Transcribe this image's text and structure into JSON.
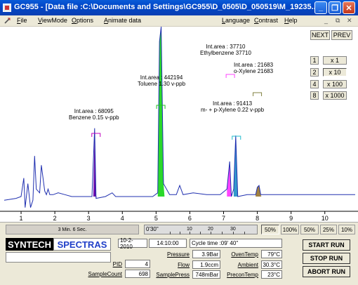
{
  "window": {
    "title": "GC955 - [Data file :C:\\Documents and Settings\\GC955\\D_0505\\D_050519\\M_19235...",
    "buttons": [
      "_",
      "❐",
      "✕"
    ]
  },
  "menu": {
    "left": [
      "File",
      "ViewMode",
      "Options",
      "Animate data"
    ],
    "right": [
      "Language",
      "Contrast",
      "Help"
    ],
    "mdi_controls": [
      "_",
      "⧉",
      "✕"
    ]
  },
  "nav": {
    "next": "NEXT",
    "prev": "PREV"
  },
  "scale": [
    {
      "key": "1",
      "value": "x 1"
    },
    {
      "key": "2",
      "value": "x 10"
    },
    {
      "key": "4",
      "value": "x 100"
    },
    {
      "key": "8",
      "value": "x 1000"
    }
  ],
  "peaks": [
    {
      "area": "Int.area : 68095",
      "name": "Benzene 0.15 v-ppb",
      "color": "#6a0dad",
      "marker": "#c000c0"
    },
    {
      "area": "Int.area : 442194",
      "name": "Toluene 1.30 v-ppb",
      "color": "#2ad82a",
      "marker": "#22c022"
    },
    {
      "area": "Int.area : 37710",
      "name": "Ethylbenzene 37710",
      "color": "#ff44ff",
      "marker": "#ff44ff"
    },
    {
      "area": "Int.area : 21683",
      "name": "o-Xylene 21683",
      "color": "#a08040",
      "marker": "#808040"
    },
    {
      "area": "Int.area : 91413",
      "name": "m- + p-Xylene 0.22 v-ppb",
      "color": "#3399cc",
      "marker": "#22bbcc"
    }
  ],
  "chart_data": {
    "type": "line",
    "x_ticks": [
      "1",
      "2",
      "3",
      "4",
      "5",
      "6",
      "7",
      "8",
      "9",
      "10"
    ],
    "xlim": [
      0.5,
      10.9
    ],
    "ylim": [
      0,
      1
    ],
    "series": [
      {
        "values": [
          [
            0.5,
            0.06
          ],
          [
            0.85,
            0.07
          ],
          [
            1.0,
            0.08
          ],
          [
            1.08,
            0.18
          ],
          [
            1.12,
            0.02
          ],
          [
            1.2,
            0.15
          ],
          [
            1.28,
            0.02
          ],
          [
            1.35,
            0.06
          ],
          [
            1.4,
            0.3
          ],
          [
            1.45,
            0.12
          ],
          [
            1.55,
            0.1
          ],
          [
            1.6,
            0.25
          ],
          [
            1.7,
            0.11
          ],
          [
            1.75,
            0.09
          ],
          [
            1.8,
            0.12
          ],
          [
            1.85,
            0.09
          ],
          [
            1.95,
            0.09
          ],
          [
            2.1,
            0.1
          ],
          [
            2.3,
            0.09
          ],
          [
            2.5,
            0.08
          ],
          [
            2.7,
            0.08
          ],
          [
            3.0,
            0.08
          ],
          [
            3.1,
            0.08
          ],
          [
            3.18,
            0.45
          ],
          [
            3.22,
            0.07
          ],
          [
            3.5,
            0.08
          ],
          [
            3.7,
            0.1
          ],
          [
            3.8,
            0.08
          ],
          [
            4.2,
            0.08
          ],
          [
            4.5,
            0.08
          ],
          [
            4.9,
            0.08
          ],
          [
            5.05,
            0.1
          ],
          [
            5.1,
            0.92
          ],
          [
            5.15,
            1.0
          ],
          [
            5.22,
            0.15
          ],
          [
            5.4,
            0.09
          ],
          [
            5.6,
            0.09
          ],
          [
            5.7,
            0.14
          ],
          [
            5.8,
            0.09
          ],
          [
            6.1,
            0.1
          ],
          [
            6.5,
            0.09
          ],
          [
            6.9,
            0.09
          ],
          [
            7.1,
            0.12
          ],
          [
            7.18,
            0.27
          ],
          [
            7.23,
            0.08
          ],
          [
            7.3,
            0.12
          ],
          [
            7.36,
            0.41
          ],
          [
            7.42,
            0.08
          ],
          [
            7.7,
            0.09
          ],
          [
            7.95,
            0.09
          ],
          [
            8.0,
            0.13
          ],
          [
            8.05,
            0.14
          ],
          [
            8.1,
            0.09
          ],
          [
            8.6,
            0.09
          ],
          [
            9.2,
            0.09
          ],
          [
            9.8,
            0.09
          ],
          [
            10.4,
            0.09
          ],
          [
            10.9,
            0.09
          ]
        ]
      }
    ]
  },
  "status": {
    "elapsed": "3 Min. 6 Sec.",
    "scroll_start": "0'30\"",
    "scroll_marks": [
      "10",
      "20",
      "30"
    ],
    "zoom_options": [
      "50%",
      "100%",
      "50%",
      "25%",
      "10%"
    ]
  },
  "panel": {
    "logo_left": "SYNTECH",
    "logo_right": "SPECTRAS",
    "date": "10-2-2010",
    "time": "14:10:00",
    "cycle_time": "Cycle time :09' 40\"",
    "pid_label": "PID",
    "pid_value": "4",
    "samplecount_label": "SampleCount",
    "samplecount_value": "698",
    "pressure_label": "Pressure",
    "pressure_value": "3.9Bar",
    "flow_label": "Flow",
    "flow_value": "1.9ccm",
    "samplepress_label": "SamplePress",
    "samplepress_value": "748mBar",
    "oventemp_label": "OvenTemp",
    "oventemp_value": "79°C",
    "ambient_label": "Ambient",
    "ambient_value": "30.3°C",
    "precontemp_label": "PreconTemp",
    "precontemp_value": "23°C",
    "start": "START RUN",
    "stop": "STOP RUN",
    "abort": "ABORT RUN"
  }
}
